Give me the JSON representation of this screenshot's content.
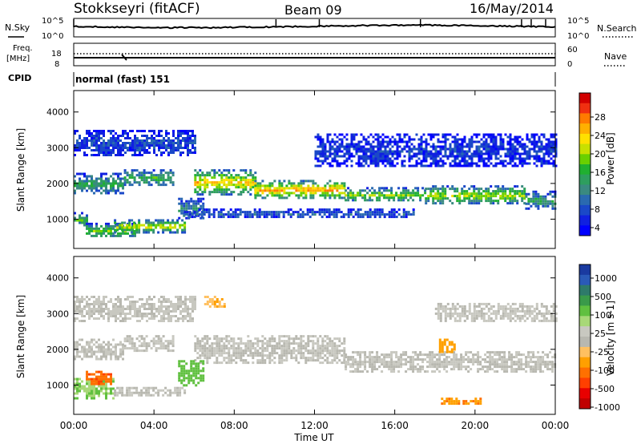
{
  "header": {
    "station": "Stokkseyri (fitACF)",
    "beam": "Beam 09",
    "date": "16/May/2014"
  },
  "noise_panel": {
    "left_label": "N.Sky",
    "right_label": "N.Search",
    "left_ticks": [
      "10^5",
      "10^0"
    ],
    "right_ticks": [
      "10^5",
      "10^0"
    ]
  },
  "freq_panel": {
    "left_label_1": "Freq.",
    "left_label_2": "[MHz]",
    "right_label": "Nave",
    "left_ticks": [
      "18",
      "8"
    ],
    "right_ticks": [
      "60",
      "0"
    ]
  },
  "cpid": {
    "label": "CPID",
    "text": "normal (fast) 151"
  },
  "chart_data": [
    {
      "type": "heatmap",
      "name": "power",
      "ylabel": "Slant Range [km]",
      "xlabel": "",
      "ylim": [
        180,
        4600
      ],
      "xlim": [
        0,
        24
      ],
      "y_ticks": [
        1000,
        2000,
        3000,
        4000
      ],
      "colorbar": {
        "label": "Power [dB]",
        "ticks": [
          "28",
          "24",
          "20",
          "16",
          "12",
          "8",
          "4"
        ],
        "colors": [
          "#d20000",
          "#f03010",
          "#ff7a00",
          "#ffb000",
          "#ffe000",
          "#c8e000",
          "#6ad000",
          "#20b030",
          "#2e9e5e",
          "#3a8a80",
          "#2a6ab0",
          "#1a48c8",
          "#1020e0",
          "#0000ff"
        ]
      },
      "bands": [
        {
          "t0": 0.0,
          "t1": 2.5,
          "r0": 1700,
          "r1": 2300,
          "level": 12
        },
        {
          "t0": 0.0,
          "t1": 0.6,
          "r0": 800,
          "r1": 1200,
          "level": 14
        },
        {
          "t0": 0.6,
          "t1": 3.0,
          "r0": 500,
          "r1": 900,
          "level": 16
        },
        {
          "t0": 2.0,
          "t1": 5.5,
          "r0": 650,
          "r1": 1000,
          "level": 20
        },
        {
          "t0": 2.5,
          "t1": 5.0,
          "r0": 1950,
          "r1": 2400,
          "level": 14
        },
        {
          "t0": 5.2,
          "t1": 6.5,
          "r0": 1000,
          "r1": 1600,
          "level": 10
        },
        {
          "t0": 6.0,
          "t1": 9.0,
          "r0": 1700,
          "r1": 2400,
          "level": 22
        },
        {
          "t0": 9.0,
          "t1": 13.5,
          "r0": 1600,
          "r1": 2100,
          "level": 24
        },
        {
          "t0": 13.5,
          "t1": 17.5,
          "r0": 1500,
          "r1": 1900,
          "level": 16
        },
        {
          "t0": 17.5,
          "t1": 22.5,
          "r0": 1450,
          "r1": 1950,
          "level": 18
        },
        {
          "t0": 22.5,
          "t1": 24.0,
          "r0": 1300,
          "r1": 1800,
          "level": 12
        },
        {
          "t0": 5.5,
          "t1": 17.0,
          "r0": 1050,
          "r1": 1300,
          "level": 6
        },
        {
          "t0": 0.0,
          "t1": 6.0,
          "r0": 2800,
          "r1": 3500,
          "level": 5
        },
        {
          "t0": 12.0,
          "t1": 24.0,
          "r0": 2500,
          "r1": 3400,
          "level": 4
        }
      ]
    },
    {
      "type": "heatmap",
      "name": "velocity",
      "ylabel": "Slant Range [km]",
      "xlabel": "Time UT",
      "ylim": [
        180,
        4600
      ],
      "xlim": [
        0,
        24
      ],
      "y_ticks": [
        1000,
        2000,
        3000,
        4000
      ],
      "x_ticks": [
        "00:00",
        "04:00",
        "08:00",
        "12:00",
        "16:00",
        "20:00",
        "00:00"
      ],
      "colorbar": {
        "label": "Velocity [m s-1]",
        "ticks": [
          "1000",
          "500",
          "100",
          "25",
          "-25",
          "-100",
          "-500",
          "-1000"
        ],
        "colors": [
          "#1a3aa0",
          "#2a5ab8",
          "#2e7a6a",
          "#3a9a4a",
          "#60c040",
          "#a8d878",
          "#c8c8c0",
          "#b8b8b0",
          "#ffc060",
          "#ffa000",
          "#ff7000",
          "#ff4000",
          "#e80000",
          "#c00000"
        ]
      },
      "bands": [
        {
          "t0": 0.0,
          "t1": 2.5,
          "r0": 1700,
          "r1": 2300,
          "v": 0
        },
        {
          "t0": 2.5,
          "t1": 5.0,
          "r0": 1950,
          "r1": 2400,
          "v": 0
        },
        {
          "t0": 6.0,
          "t1": 13.5,
          "r0": 1600,
          "r1": 2400,
          "v": 0
        },
        {
          "t0": 13.5,
          "t1": 24.0,
          "r0": 1400,
          "r1": 1950,
          "v": 0
        },
        {
          "t0": 0.0,
          "t1": 2.0,
          "r0": 600,
          "r1": 1200,
          "v": 300
        },
        {
          "t0": 2.0,
          "t1": 5.5,
          "r0": 700,
          "r1": 950,
          "v": 5
        },
        {
          "t0": 5.2,
          "t1": 6.5,
          "r0": 1000,
          "r1": 1700,
          "v": 400
        },
        {
          "t0": 18.2,
          "t1": 19.0,
          "r0": 1900,
          "r1": 2300,
          "v": -400
        },
        {
          "t0": 18.3,
          "t1": 20.3,
          "r0": 450,
          "r1": 650,
          "v": -450
        },
        {
          "t0": 0.6,
          "t1": 1.8,
          "r0": 1000,
          "r1": 1400,
          "v": -600
        },
        {
          "t0": 6.5,
          "t1": 7.5,
          "r0": 3200,
          "r1": 3500,
          "v": -300
        },
        {
          "t0": 0.0,
          "t1": 6.0,
          "r0": 2800,
          "r1": 3500,
          "v": 10
        },
        {
          "t0": 18.0,
          "t1": 24.0,
          "r0": 2800,
          "r1": 3300,
          "v": 10
        }
      ]
    }
  ]
}
